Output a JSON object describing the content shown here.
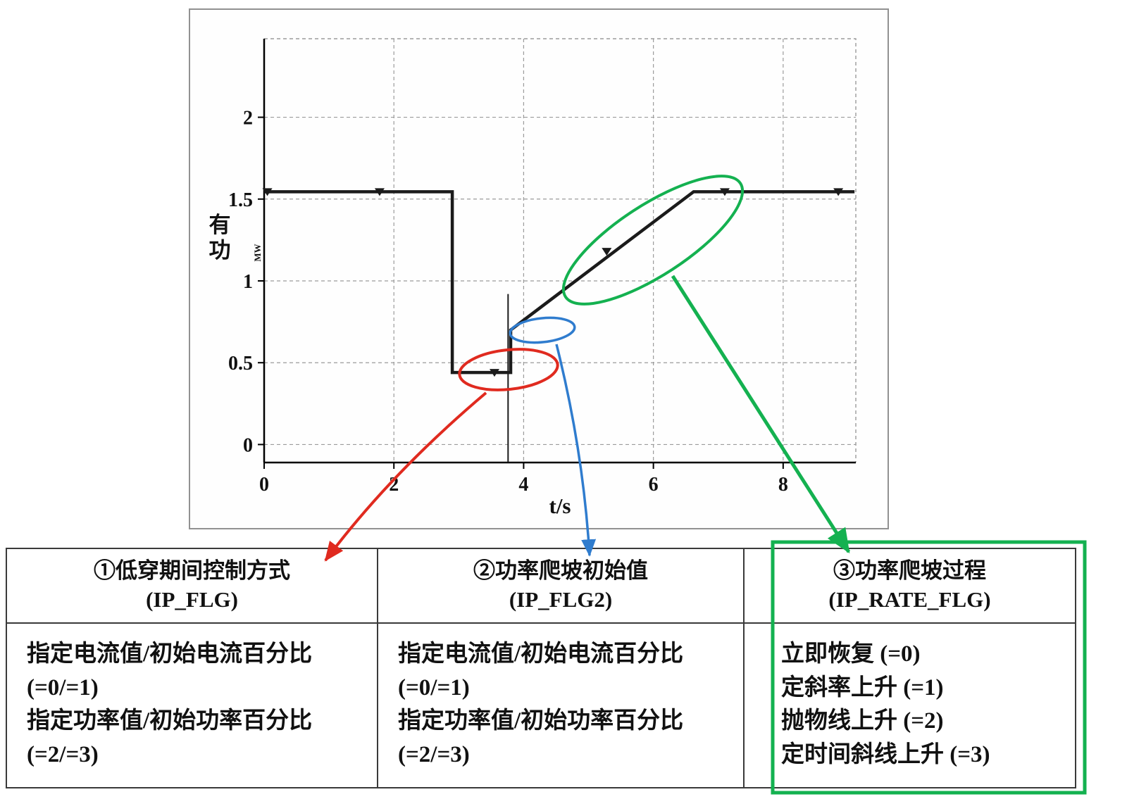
{
  "colors": {
    "red": "#e02a1f",
    "blue": "#2f7cce",
    "green": "#14b150",
    "curve": "#1b1b1b",
    "grid": "#9b9b9b"
  },
  "chart_data": {
    "type": "line",
    "title": "",
    "xlabel": "t/s",
    "ylabel": "有功",
    "ylabel_unit": "MW",
    "xlim": [
      0,
      9.12
    ],
    "ylim": [
      -0.11,
      2.48
    ],
    "x_ticks": [
      0,
      2,
      4,
      6,
      8
    ],
    "y_ticks": [
      0,
      0.5,
      1,
      1.5,
      2
    ],
    "grid": "dashed",
    "series": [
      {
        "name": "active-power-MW",
        "points": [
          [
            0,
            1.545
          ],
          [
            2.9,
            1.545
          ],
          [
            2.9,
            0.44
          ],
          [
            3.8,
            0.44
          ],
          [
            3.8,
            0.7
          ],
          [
            6.62,
            1.545
          ],
          [
            9.1,
            1.545
          ]
        ]
      }
    ],
    "event_line": {
      "x": 3.76,
      "y_from": -0.11,
      "y_to": 0.92
    },
    "markers": [
      [
        0.05,
        1.545
      ],
      [
        1.78,
        1.545
      ],
      [
        3.55,
        0.44
      ],
      [
        5.28,
        1.18
      ],
      [
        7.1,
        1.545
      ],
      [
        8.85,
        1.545
      ]
    ]
  },
  "table": {
    "columns": [
      {
        "header": "①低穿期间控制方式\n(IP_FLG)",
        "body": "指定电流值/初始电流百分比  (=0/=1)\n指定功率值/初始功率百分比  (=2/=3)"
      },
      {
        "header": "②功率爬坡初始值\n(IP_FLG2)",
        "body": "指定电流值/初始电流百分比 (=0/=1)\n指定功率值/初始功率百分比 (=2/=3)"
      },
      {
        "header": "③功率爬坡过程\n(IP_RATE_FLG)",
        "body": "立即恢复 (=0)\n定斜率上升 (=1)\n抛物线上升 (=2)\n定时间斜线上升 (=3)"
      }
    ]
  }
}
